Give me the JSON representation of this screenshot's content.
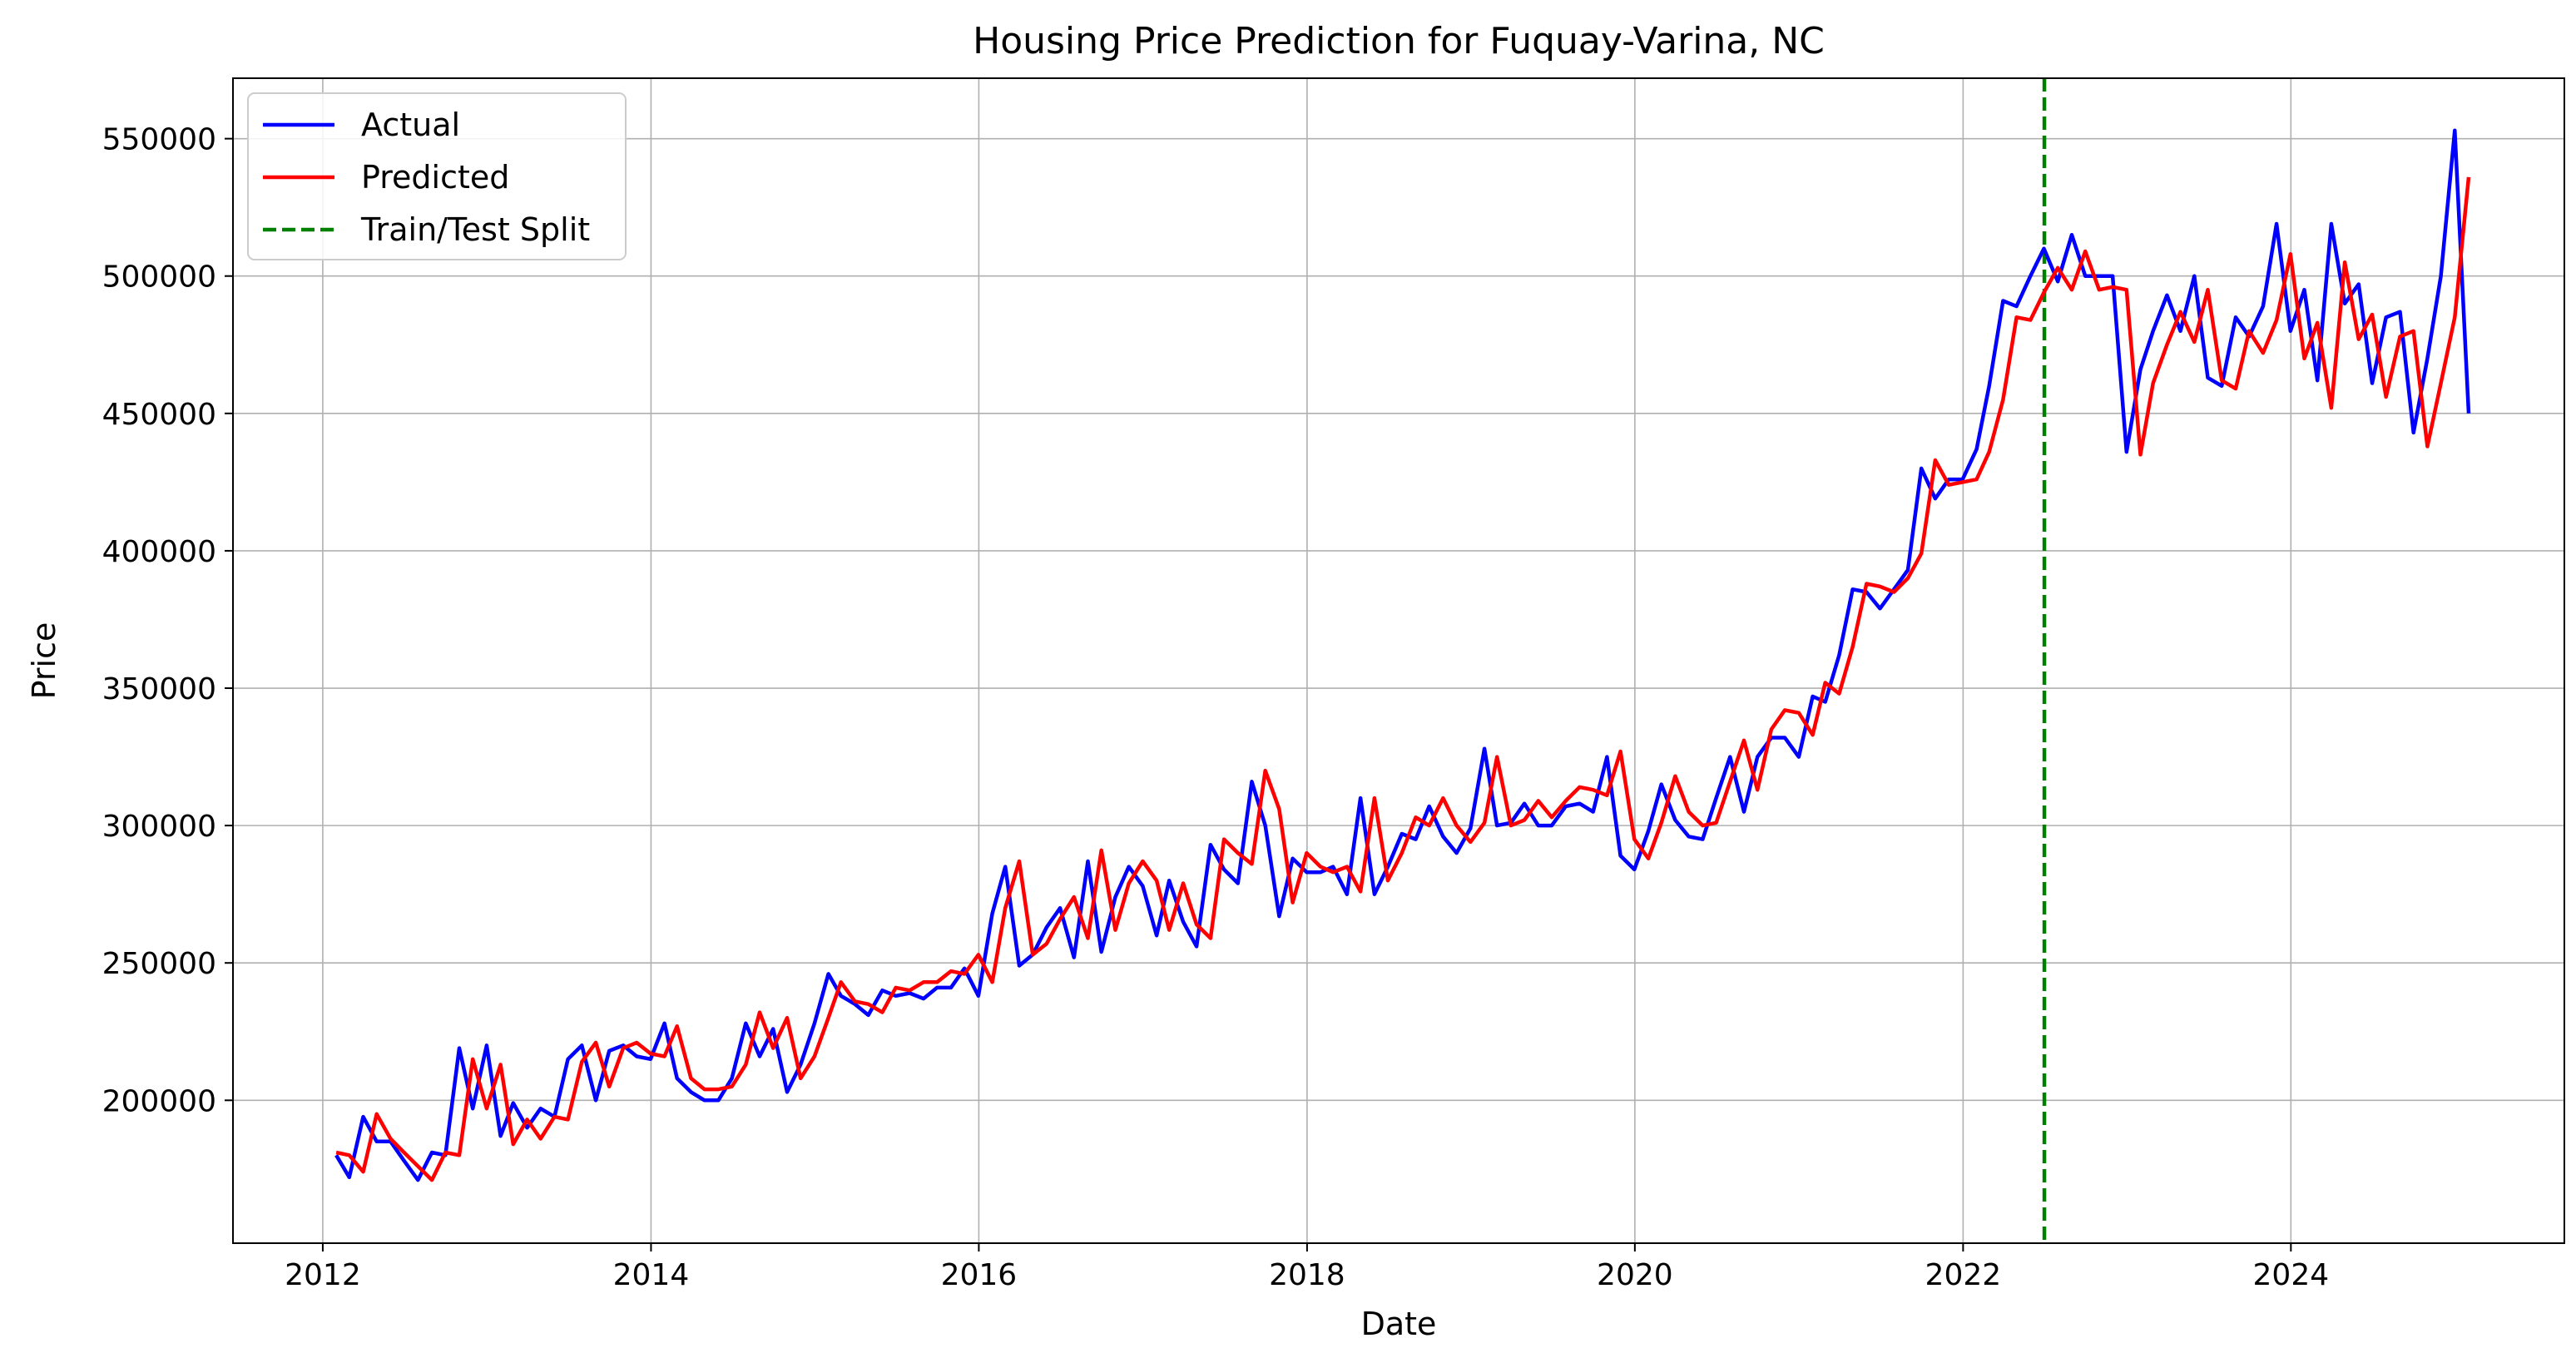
{
  "chart_data": {
    "type": "line",
    "title": "Housing Price Prediction for Fuquay-Varina, NC",
    "xlabel": "Date",
    "ylabel": "Price",
    "xlim": [
      "2011-06-15",
      "2025-09-01"
    ],
    "ylim": [
      148000,
      572000
    ],
    "x_ticks": [
      "2012",
      "2014",
      "2016",
      "2018",
      "2020",
      "2022",
      "2024"
    ],
    "y_ticks": [
      200000,
      250000,
      300000,
      350000,
      400000,
      450000,
      500000,
      550000
    ],
    "grid": true,
    "legend_position": "top-left",
    "split": {
      "label": "Train/Test Split",
      "date": "2022-07-01",
      "color": "#008000"
    },
    "series": [
      {
        "name": "Actual",
        "color": "#0000ff",
        "x": [
          "2012-01-31",
          "2012-02-29",
          "2012-03-31",
          "2012-04-30",
          "2012-05-31",
          "2012-06-30",
          "2012-07-31",
          "2012-08-31",
          "2012-09-30",
          "2012-10-31",
          "2012-11-30",
          "2012-12-31",
          "2013-01-31",
          "2013-02-28",
          "2013-03-31",
          "2013-04-30",
          "2013-05-31",
          "2013-06-30",
          "2013-07-31",
          "2013-08-31",
          "2013-09-30",
          "2013-10-31",
          "2013-11-30",
          "2013-12-31",
          "2014-01-31",
          "2014-02-28",
          "2014-03-31",
          "2014-04-30",
          "2014-05-31",
          "2014-06-30",
          "2014-07-31",
          "2014-08-31",
          "2014-09-30",
          "2014-10-31",
          "2014-11-30",
          "2014-12-31",
          "2015-01-31",
          "2015-02-28",
          "2015-03-31",
          "2015-04-30",
          "2015-05-31",
          "2015-06-30",
          "2015-07-31",
          "2015-08-31",
          "2015-09-30",
          "2015-10-31",
          "2015-11-30",
          "2015-12-31",
          "2016-01-31",
          "2016-02-29",
          "2016-03-31",
          "2016-04-30",
          "2016-05-31",
          "2016-06-30",
          "2016-07-31",
          "2016-08-31",
          "2016-09-30",
          "2016-10-31",
          "2016-11-30",
          "2016-12-31",
          "2017-01-31",
          "2017-02-28",
          "2017-03-31",
          "2017-04-30",
          "2017-05-31",
          "2017-06-30",
          "2017-07-31",
          "2017-08-31",
          "2017-09-30",
          "2017-10-31",
          "2017-11-30",
          "2017-12-31",
          "2018-01-31",
          "2018-02-28",
          "2018-03-31",
          "2018-04-30",
          "2018-05-31",
          "2018-06-30",
          "2018-07-31",
          "2018-08-31",
          "2018-09-30",
          "2018-10-31",
          "2018-11-30",
          "2018-12-31",
          "2019-01-31",
          "2019-02-28",
          "2019-03-31",
          "2019-04-30",
          "2019-05-31",
          "2019-06-30",
          "2019-07-31",
          "2019-08-31",
          "2019-09-30",
          "2019-10-31",
          "2019-11-30",
          "2019-12-31",
          "2020-01-31",
          "2020-02-29",
          "2020-03-31",
          "2020-04-30",
          "2020-05-31",
          "2020-06-30",
          "2020-07-31",
          "2020-08-31",
          "2020-09-30",
          "2020-10-31",
          "2020-11-30",
          "2020-12-31",
          "2021-01-31",
          "2021-02-28",
          "2021-03-31",
          "2021-04-30",
          "2021-05-31",
          "2021-06-30",
          "2021-07-31",
          "2021-08-31",
          "2021-09-30",
          "2021-10-31",
          "2021-11-30",
          "2021-12-31",
          "2022-01-31",
          "2022-02-28",
          "2022-03-31",
          "2022-04-30",
          "2022-05-31",
          "2022-06-30",
          "2022-07-31",
          "2022-08-31",
          "2022-09-30",
          "2022-10-31",
          "2022-11-30",
          "2022-12-31",
          "2023-01-31",
          "2023-02-28",
          "2023-03-31",
          "2023-04-30",
          "2023-05-31",
          "2023-06-30",
          "2023-07-31",
          "2023-08-31",
          "2023-09-30",
          "2023-10-31",
          "2023-11-30",
          "2023-12-31",
          "2024-01-31",
          "2024-02-29",
          "2024-03-31",
          "2024-04-30",
          "2024-05-31",
          "2024-06-30",
          "2024-07-31",
          "2024-08-31",
          "2024-09-30",
          "2024-10-31",
          "2024-11-30",
          "2024-12-31",
          "2025-01-31"
        ],
        "y": [
          180000,
          172000,
          194000,
          185000,
          185000,
          178000,
          171000,
          181000,
          180000,
          219000,
          197000,
          220000,
          187000,
          199000,
          190000,
          197000,
          194000,
          215000,
          220000,
          200000,
          218000,
          220000,
          216000,
          215000,
          228000,
          208000,
          203000,
          200000,
          200000,
          208000,
          228000,
          216000,
          226000,
          203000,
          213000,
          228000,
          246000,
          238000,
          235000,
          231000,
          240000,
          238000,
          239000,
          237000,
          241000,
          241000,
          248000,
          238000,
          268000,
          285000,
          249000,
          253000,
          263000,
          270000,
          252000,
          287000,
          254000,
          274000,
          285000,
          278000,
          260000,
          280000,
          265000,
          256000,
          293000,
          284000,
          279000,
          316000,
          300000,
          267000,
          288000,
          283000,
          283000,
          285000,
          275000,
          310000,
          275000,
          285000,
          297000,
          295000,
          307000,
          296000,
          290000,
          299000,
          328000,
          300000,
          301000,
          308000,
          300000,
          300000,
          307000,
          308000,
          305000,
          325000,
          289000,
          284000,
          298000,
          315000,
          302000,
          296000,
          295000,
          310000,
          325000,
          305000,
          325000,
          332000,
          332000,
          325000,
          347000,
          345000,
          362000,
          386000,
          385000,
          379000,
          386000,
          393000,
          430000,
          419000,
          426000,
          426000,
          437000,
          460000,
          491000,
          489000,
          500000,
          510000,
          498000,
          515000,
          500000,
          500000,
          500000,
          436000,
          466000,
          480000,
          493000,
          480000,
          500000,
          463000,
          460000,
          485000,
          478000,
          489000,
          519000,
          480000,
          495000,
          462000,
          519000,
          490000,
          497000,
          461000,
          485000,
          487000,
          443000,
          470000,
          500000,
          553000,
          450000
        ]
      },
      {
        "name": "Predicted",
        "color": "#ff0000",
        "x": [
          "2012-01-31",
          "2012-02-29",
          "2012-03-31",
          "2012-04-30",
          "2012-05-31",
          "2012-06-30",
          "2012-07-31",
          "2012-08-31",
          "2012-09-30",
          "2012-10-31",
          "2012-11-30",
          "2012-12-31",
          "2013-01-31",
          "2013-02-28",
          "2013-03-31",
          "2013-04-30",
          "2013-05-31",
          "2013-06-30",
          "2013-07-31",
          "2013-08-31",
          "2013-09-30",
          "2013-10-31",
          "2013-11-30",
          "2013-12-31",
          "2014-01-31",
          "2014-02-28",
          "2014-03-31",
          "2014-04-30",
          "2014-05-31",
          "2014-06-30",
          "2014-07-31",
          "2014-08-31",
          "2014-09-30",
          "2014-10-31",
          "2014-11-30",
          "2014-12-31",
          "2015-01-31",
          "2015-02-28",
          "2015-03-31",
          "2015-04-30",
          "2015-05-31",
          "2015-06-30",
          "2015-07-31",
          "2015-08-31",
          "2015-09-30",
          "2015-10-31",
          "2015-11-30",
          "2015-12-31",
          "2016-01-31",
          "2016-02-29",
          "2016-03-31",
          "2016-04-30",
          "2016-05-31",
          "2016-06-30",
          "2016-07-31",
          "2016-08-31",
          "2016-09-30",
          "2016-10-31",
          "2016-11-30",
          "2016-12-31",
          "2017-01-31",
          "2017-02-28",
          "2017-03-31",
          "2017-04-30",
          "2017-05-31",
          "2017-06-30",
          "2017-07-31",
          "2017-08-31",
          "2017-09-30",
          "2017-10-31",
          "2017-11-30",
          "2017-12-31",
          "2018-01-31",
          "2018-02-28",
          "2018-03-31",
          "2018-04-30",
          "2018-05-31",
          "2018-06-30",
          "2018-07-31",
          "2018-08-31",
          "2018-09-30",
          "2018-10-31",
          "2018-11-30",
          "2018-12-31",
          "2019-01-31",
          "2019-02-28",
          "2019-03-31",
          "2019-04-30",
          "2019-05-31",
          "2019-06-30",
          "2019-07-31",
          "2019-08-31",
          "2019-09-30",
          "2019-10-31",
          "2019-11-30",
          "2019-12-31",
          "2020-01-31",
          "2020-02-29",
          "2020-03-31",
          "2020-04-30",
          "2020-05-31",
          "2020-06-30",
          "2020-07-31",
          "2020-08-31",
          "2020-09-30",
          "2020-10-31",
          "2020-11-30",
          "2020-12-31",
          "2021-01-31",
          "2021-02-28",
          "2021-03-31",
          "2021-04-30",
          "2021-05-31",
          "2021-06-30",
          "2021-07-31",
          "2021-08-31",
          "2021-09-30",
          "2021-10-31",
          "2021-11-30",
          "2021-12-31",
          "2022-01-31",
          "2022-02-28",
          "2022-03-31",
          "2022-04-30",
          "2022-05-31",
          "2022-06-30",
          "2022-07-31",
          "2022-08-31",
          "2022-09-30",
          "2022-10-31",
          "2022-11-30",
          "2022-12-31",
          "2023-01-31",
          "2023-02-28",
          "2023-03-31",
          "2023-04-30",
          "2023-05-31",
          "2023-06-30",
          "2023-07-31",
          "2023-08-31",
          "2023-09-30",
          "2023-10-31",
          "2023-11-30",
          "2023-12-31",
          "2024-01-31",
          "2024-02-29",
          "2024-03-31",
          "2024-04-30",
          "2024-05-31",
          "2024-06-30",
          "2024-07-31",
          "2024-08-31",
          "2024-09-30",
          "2024-10-31",
          "2024-11-30",
          "2024-12-31",
          "2025-01-31"
        ],
        "y": [
          181000,
          180000,
          174000,
          195000,
          186000,
          181000,
          176000,
          171000,
          181000,
          180000,
          215000,
          197000,
          213000,
          184000,
          193000,
          186000,
          194000,
          193000,
          214000,
          221000,
          205000,
          219000,
          221000,
          217000,
          216000,
          227000,
          208000,
          204000,
          204000,
          205000,
          213000,
          232000,
          219000,
          230000,
          208000,
          216000,
          230000,
          243000,
          236000,
          235000,
          232000,
          241000,
          240000,
          243000,
          243000,
          247000,
          246000,
          253000,
          243000,
          270000,
          287000,
          253000,
          257000,
          266000,
          274000,
          259000,
          291000,
          262000,
          279000,
          287000,
          280000,
          262000,
          279000,
          264000,
          259000,
          295000,
          290000,
          286000,
          320000,
          306000,
          272000,
          290000,
          285000,
          283000,
          285000,
          276000,
          310000,
          280000,
          290000,
          303000,
          300000,
          310000,
          300000,
          294000,
          301000,
          325000,
          300000,
          302000,
          309000,
          303000,
          309000,
          314000,
          313000,
          311000,
          327000,
          295000,
          288000,
          301000,
          318000,
          305000,
          300000,
          301000,
          316000,
          331000,
          313000,
          335000,
          342000,
          341000,
          333000,
          352000,
          348000,
          365000,
          388000,
          387000,
          385000,
          390000,
          399000,
          433000,
          424000,
          425000,
          426000,
          436000,
          455000,
          485000,
          484000,
          494000,
          503000,
          495000,
          509000,
          495000,
          496000,
          495000,
          435000,
          461000,
          475000,
          487000,
          476000,
          495000,
          462000,
          459000,
          480000,
          472000,
          484000,
          508000,
          470000,
          483000,
          452000,
          505000,
          477000,
          486000,
          456000,
          478000,
          480000,
          438000,
          461000,
          485000,
          536000
        ]
      }
    ]
  }
}
